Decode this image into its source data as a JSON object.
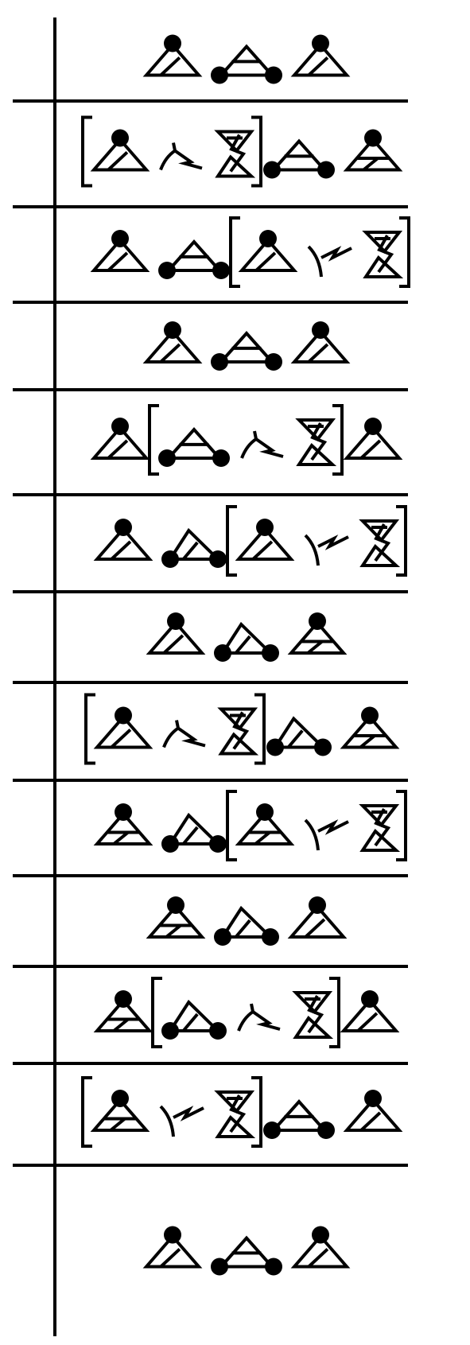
{
  "diagram": {
    "rows": [
      {
        "glyphs": [
          "peak-a",
          "peak-b",
          "peak-a"
        ],
        "bracket": null
      },
      {
        "glyphs": [
          "peak-a",
          "link-down",
          "hourglass",
          "peak-b",
          "peak-c"
        ],
        "bracket": [
          0,
          2
        ]
      },
      {
        "glyphs": [
          "peak-a",
          "peak-b",
          "peak-a",
          "link-up",
          "hourglass"
        ],
        "bracket": [
          2,
          4
        ]
      },
      {
        "glyphs": [
          "peak-a",
          "peak-b",
          "peak-a"
        ],
        "bracket": null
      },
      {
        "glyphs": [
          "peak-a",
          "peak-b",
          "link-down",
          "hourglass",
          "peak-a"
        ],
        "bracket": [
          1,
          3
        ]
      },
      {
        "glyphs": [
          "peak-a",
          "peak-d",
          "peak-a",
          "link-up",
          "hourglass"
        ],
        "bracket": [
          2,
          4
        ]
      },
      {
        "glyphs": [
          "peak-a",
          "peak-d",
          "peak-c"
        ],
        "bracket": null
      },
      {
        "glyphs": [
          "peak-a",
          "link-down",
          "hourglass",
          "peak-d",
          "peak-c"
        ],
        "bracket": [
          0,
          2
        ]
      },
      {
        "glyphs": [
          "peak-c",
          "peak-d",
          "peak-c",
          "link-up",
          "hourglass"
        ],
        "bracket": [
          2,
          4
        ]
      },
      {
        "glyphs": [
          "peak-c",
          "peak-d",
          "peak-a"
        ],
        "bracket": null
      },
      {
        "glyphs": [
          "peak-c",
          "peak-d",
          "link-down",
          "hourglass",
          "peak-a"
        ],
        "bracket": [
          1,
          3
        ]
      },
      {
        "glyphs": [
          "peak-c",
          "link-up",
          "hourglass",
          "peak-b",
          "peak-a"
        ],
        "bracket": [
          0,
          2
        ]
      },
      {
        "glyphs": [
          "peak-a",
          "peak-b",
          "peak-a"
        ],
        "bracket": null
      }
    ]
  }
}
